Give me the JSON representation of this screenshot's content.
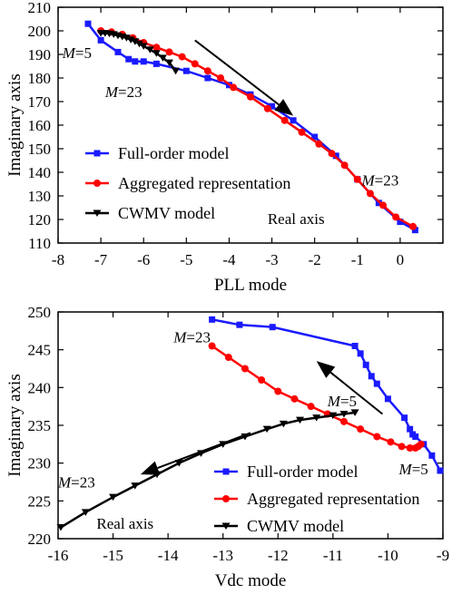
{
  "chart_data": [
    {
      "type": "line",
      "xlabel": "PLL mode",
      "ylabel": "Imaginary axis",
      "xlim": [
        -8,
        1
      ],
      "ylim": [
        110,
        210
      ],
      "xticks": [
        -8,
        -7,
        -6,
        -5,
        -4,
        -3,
        -2,
        -1,
        0
      ],
      "yticks": [
        110,
        120,
        130,
        140,
        150,
        160,
        170,
        180,
        190,
        200,
        210
      ],
      "grid": false,
      "legend_position": "bottom-left",
      "series": [
        {
          "name": "Full-order model",
          "color": "#1a1aff",
          "marker": "square",
          "x": [
            -7.3,
            -7.0,
            -6.6,
            -6.35,
            -6.2,
            -6.0,
            -5.7,
            -5.0,
            -4.5,
            -4.0,
            -3.5,
            -3.0,
            -2.5,
            -2.0,
            -1.5,
            -1.0,
            -0.5,
            0.0,
            0.35
          ],
          "y": [
            203,
            196,
            191,
            188,
            187,
            187,
            186,
            183,
            180,
            177,
            173,
            168,
            162,
            155,
            147,
            137,
            127,
            119,
            115.5
          ]
        },
        {
          "name": "Aggregated representation",
          "color": "#ff0000",
          "marker": "circle",
          "x": [
            -7.0,
            -6.75,
            -6.5,
            -6.25,
            -6.0,
            -5.7,
            -5.4,
            -5.1,
            -4.8,
            -4.5,
            -4.2,
            -3.9,
            -3.5,
            -3.1,
            -2.7,
            -2.3,
            -1.9,
            -1.6,
            -1.3,
            -1.0,
            -0.7,
            -0.4,
            -0.1,
            0.3
          ],
          "y": [
            200,
            199.5,
            198.5,
            197,
            195,
            193,
            191,
            189,
            186,
            183,
            180,
            176,
            172,
            167,
            162,
            157,
            152,
            148,
            143,
            137,
            131,
            126,
            121,
            117
          ]
        },
        {
          "name": "CWMV model",
          "color": "#000000",
          "marker": "triangle-down",
          "x": [
            -7.0,
            -6.9,
            -6.8,
            -6.7,
            -6.6,
            -6.5,
            -6.4,
            -6.3,
            -6.2,
            -6.1,
            -6.0,
            -5.85,
            -5.7,
            -5.55,
            -5.4,
            -5.25
          ],
          "y": [
            199,
            199,
            198.8,
            198.5,
            198,
            197.5,
            197,
            196.2,
            195.5,
            194.5,
            193.5,
            192,
            190.5,
            188.5,
            186.5,
            183
          ]
        }
      ],
      "annotations": [
        {
          "text": "M=5",
          "x": -7.9,
          "y": 188.5
        },
        {
          "text": "M=23",
          "x": -6.9,
          "y": 172
        },
        {
          "text": "M=23",
          "x": -0.9,
          "y": 134.5
        },
        {
          "text": "Real axis",
          "x": -3.1,
          "y": 118
        }
      ],
      "arrows": [
        {
          "from": [
            -4.8,
            196
          ],
          "to": [
            -2.5,
            164
          ]
        }
      ]
    },
    {
      "type": "line",
      "xlabel": "Vdc mode",
      "ylabel": "Imaginary axis",
      "xlim": [
        -16,
        -9
      ],
      "ylim": [
        220,
        250
      ],
      "xticks": [
        -16,
        -15,
        -14,
        -13,
        -12,
        -11,
        -10,
        -9
      ],
      "yticks": [
        220,
        225,
        230,
        235,
        240,
        245,
        250
      ],
      "grid": false,
      "legend_position": "bottom-right",
      "series": [
        {
          "name": "Full-order model",
          "color": "#1a1aff",
          "marker": "square",
          "x": [
            -13.2,
            -12.7,
            -12.1,
            -10.6,
            -10.5,
            -10.4,
            -10.3,
            -10.2,
            -10.0,
            -9.7,
            -9.6,
            -9.55,
            -9.5,
            -9.35,
            -9.2,
            -9.05
          ],
          "y": [
            249,
            248.3,
            248,
            245.5,
            244.5,
            243,
            241.5,
            240.5,
            238.5,
            236,
            234.5,
            233.8,
            233.5,
            232.5,
            231,
            229
          ]
        },
        {
          "name": "Aggregated representation",
          "color": "#ff0000",
          "marker": "circle",
          "x": [
            -13.2,
            -12.9,
            -12.6,
            -12.3,
            -12.0,
            -11.7,
            -11.4,
            -11.1,
            -10.8,
            -10.5,
            -10.2,
            -9.95,
            -9.75,
            -9.6,
            -9.5,
            -9.45,
            -9.4
          ],
          "y": [
            245.5,
            244,
            242.5,
            241,
            239.5,
            238.5,
            237.5,
            236.5,
            235.5,
            234.5,
            233.5,
            232.8,
            232.2,
            232,
            232,
            232.2,
            232.5
          ]
        },
        {
          "name": "CWMV model",
          "color": "#000000",
          "marker": "triangle-down",
          "x": [
            -15.95,
            -15.5,
            -15.0,
            -14.6,
            -14.2,
            -13.8,
            -13.4,
            -13.0,
            -12.6,
            -12.2,
            -11.9,
            -11.6,
            -11.3,
            -11.0,
            -10.8,
            -10.6
          ],
          "y": [
            221.5,
            223.5,
            225.5,
            227,
            228.5,
            230,
            231.3,
            232.5,
            233.5,
            234.5,
            235.2,
            235.7,
            236,
            236.3,
            236.5,
            236.7
          ]
        }
      ],
      "annotations": [
        {
          "text": "M=23",
          "x": -13.9,
          "y": 246
        },
        {
          "text": "M=5",
          "x": -11.1,
          "y": 237.5
        },
        {
          "text": "M=5",
          "x": -9.8,
          "y": 228.5
        },
        {
          "text": "M=23",
          "x": -16.0,
          "y": 226.8
        },
        {
          "text": "Real axis",
          "x": -15.3,
          "y": 221.3
        }
      ],
      "arrows": [
        {
          "from": [
            -10.1,
            236.5
          ],
          "to": [
            -11.3,
            243.5
          ]
        },
        {
          "from": [
            -12.5,
            234
          ],
          "to": [
            -14.5,
            228.5
          ]
        }
      ]
    }
  ]
}
